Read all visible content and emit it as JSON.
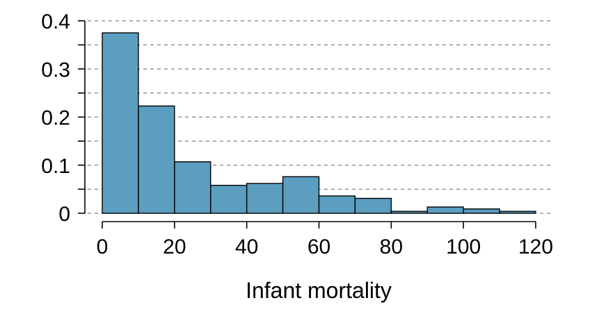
{
  "chart_data": {
    "type": "bar",
    "xlabel": "Infant mortality",
    "ylabel": "",
    "bin_edges": [
      0,
      10,
      20,
      30,
      40,
      50,
      60,
      70,
      80,
      90,
      100,
      110,
      120
    ],
    "values": [
      0.375,
      0.223,
      0.107,
      0.058,
      0.062,
      0.076,
      0.036,
      0.031,
      0.004,
      0.013,
      0.009,
      0.004
    ],
    "xlim": [
      0,
      120
    ],
    "ylim": [
      0,
      0.4
    ],
    "x_ticks": [
      "0",
      "20",
      "40",
      "60",
      "80",
      "100",
      "120"
    ],
    "y_ticks": [
      "0",
      "0.1",
      "0.2",
      "0.3",
      "0.4"
    ],
    "y_minor_ticks": [
      0.05,
      0.15,
      0.25,
      0.35
    ],
    "grid": "horizontal dashed",
    "bar_color": "#5b9ec0"
  }
}
